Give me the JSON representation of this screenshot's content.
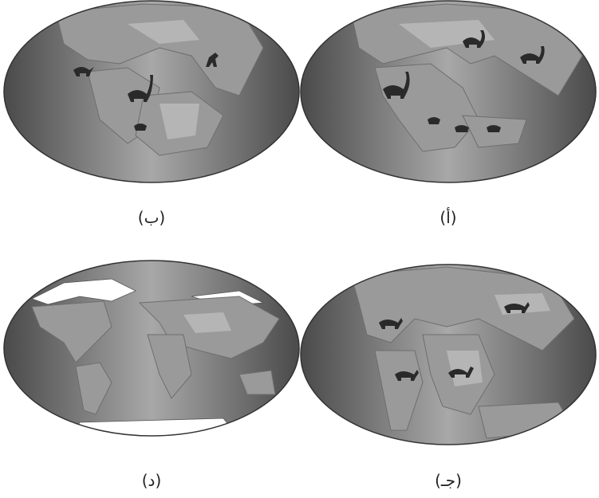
{
  "maps": [
    {
      "label": "(ب)"
    },
    {
      "label": "(أ)"
    },
    {
      "label": "(د)"
    },
    {
      "label": "(جـ)"
    }
  ]
}
